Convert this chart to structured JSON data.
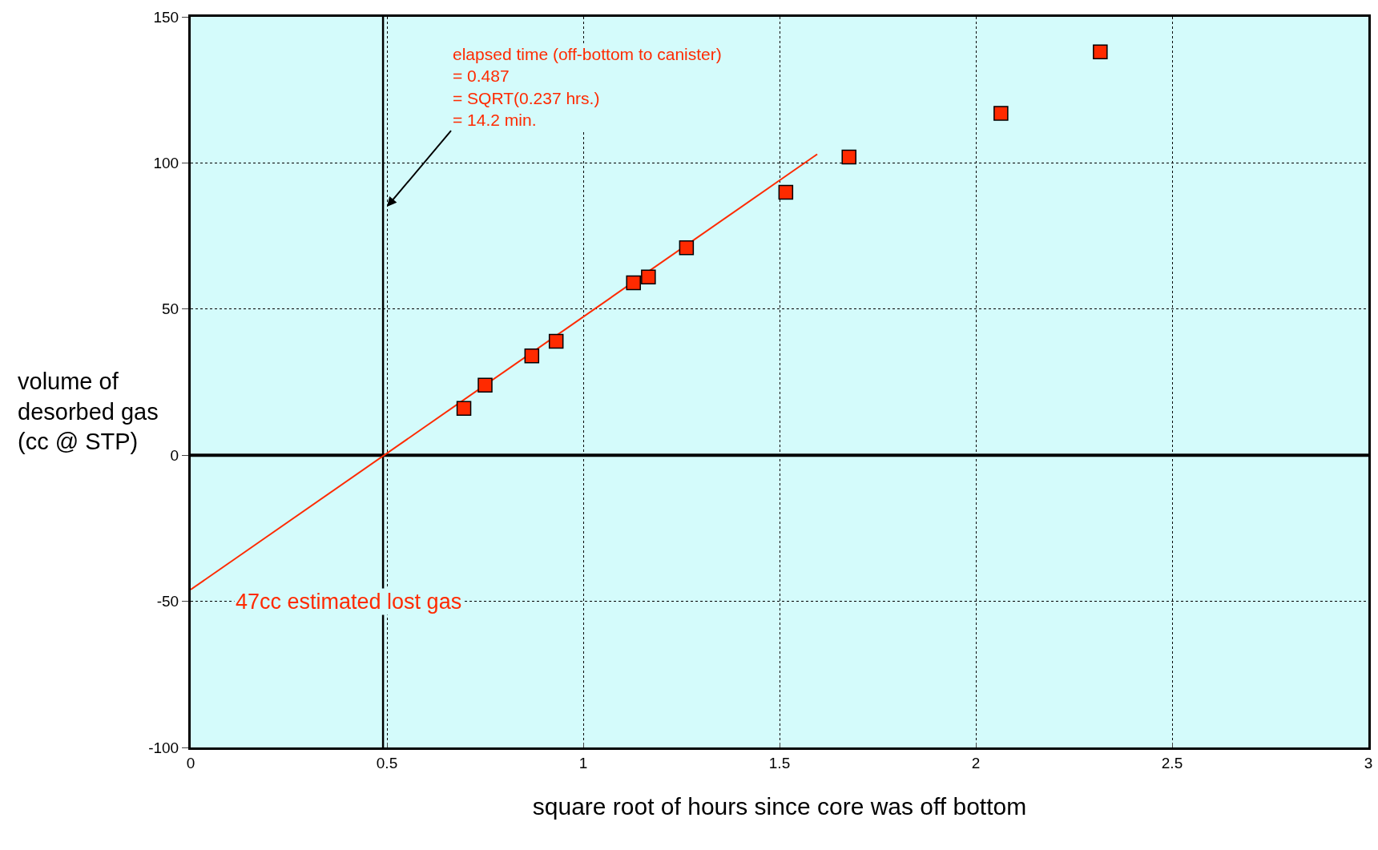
{
  "chart_data": {
    "type": "scatter",
    "xlabel": "square root of hours since core was off bottom",
    "ylabel": "volume of desorbed gas (cc @ STP)",
    "xlim": [
      0,
      3
    ],
    "xticks": [
      0,
      0.5,
      1,
      1.5,
      2,
      2.5,
      3
    ],
    "ylim": [
      -100,
      150
    ],
    "yticks": [
      -100,
      -50,
      0,
      50,
      100,
      150
    ],
    "grid": true,
    "legend": false,
    "series": [
      {
        "marker": "square",
        "color": "#ff2a00",
        "x": [
          0.696,
          0.75,
          0.869,
          0.931,
          1.128,
          1.166,
          1.263,
          1.516,
          1.677,
          2.064,
          2.317
        ],
        "values": [
          16,
          24,
          34,
          39,
          59,
          61,
          71,
          90,
          102,
          117,
          138
        ]
      },
      {
        "type": "line",
        "marker": "none",
        "color": "#ff2a00",
        "x": [
          0,
          1.596
        ],
        "values": [
          -46,
          103
        ]
      }
    ],
    "ref_lines": [
      {
        "axis": "x",
        "value": 0.49,
        "color": "#000000"
      },
      {
        "axis": "y",
        "value": 0,
        "color": "#000000"
      }
    ],
    "annotations": [
      {
        "text": "elapsed time (off-bottom to canister)\n= 0.487\n= SQRT(0.237 hrs.)\n= 14.2 min.",
        "x": 0.5,
        "y": 85
      },
      "47cc estimated lost gas"
    ]
  }
}
